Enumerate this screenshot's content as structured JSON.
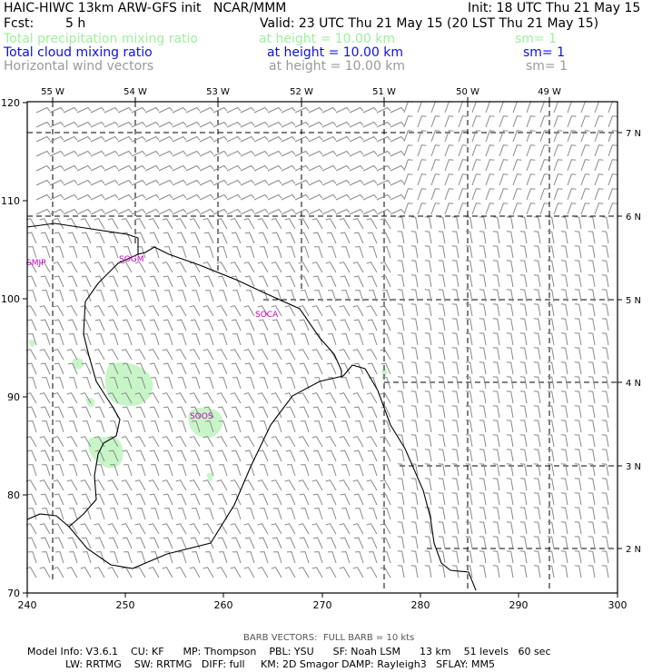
{
  "header": {
    "title": "HAIC-HIWC 13km ARW-GFS init   NCAR/MMM",
    "init": "Init: 18 UTC Thu 21 May 15",
    "fcst_label": "Fcst:",
    "fcst_value": "5 h",
    "valid": "Valid: 23 UTC Thu 21 May 15 (20 LST Thu 21 May 15)",
    "fields": [
      {
        "name": "Total precipitation mixing ratio",
        "height": "at height = 10.00 km",
        "sm": "sm= 1",
        "color": "#9ef09e"
      },
      {
        "name": "Total cloud mixing ratio",
        "height": "at height = 10.00 km",
        "sm": "sm= 1",
        "color": "#1010e0"
      },
      {
        "name": "Horizontal wind vectors",
        "height": "at height = 10.00 km",
        "sm": "sm= 1",
        "color": "#9a9a9a"
      }
    ]
  },
  "map": {
    "x_ticks": [
      "240",
      "250",
      "260",
      "270",
      "280",
      "290",
      "300"
    ],
    "y_ticks": [
      "70",
      "80",
      "90",
      "100",
      "110",
      "120"
    ],
    "lon_labels": [
      "55 W",
      "54 W",
      "53 W",
      "52 W",
      "51 W",
      "50 W",
      "49 W"
    ],
    "lat_labels": [
      "2 N",
      "3 N",
      "4 N",
      "5 N",
      "6 N",
      "7 N"
    ],
    "stations": [
      "SMJP",
      "SOGM",
      "SOCA",
      "SOOS"
    ]
  },
  "footer": {
    "barb_note": "BARB VECTORS:  FULL BARB = 10 kts",
    "line1": "Model Info: V3.6.1    CU: KF      MP: Thompson    PBL: YSU      SF: Noah LSM      13 km    51 levels   60 sec",
    "line2": "LW: RRTMG    SW: RRTMG   DIFF: full     KM: 2D Smagor DAMP: Rayleigh3   SFLAY: MM5"
  }
}
